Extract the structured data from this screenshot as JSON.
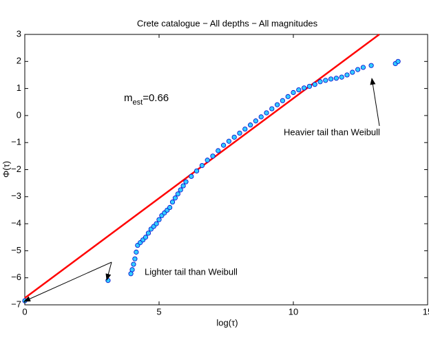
{
  "chart_data": {
    "type": "scatter",
    "title": "Crete catalogue − All depths − All magnitudes",
    "xlabel": "log(τ)",
    "ylabel": "Φ(τ)",
    "xlim": [
      0,
      15
    ],
    "ylim": [
      -7,
      3
    ],
    "xticks": [
      0,
      5,
      10,
      15
    ],
    "yticks": [
      {
        "value": -7,
        "label": "−7"
      },
      {
        "value": -6,
        "label": "−6"
      },
      {
        "value": -5,
        "label": "−5"
      },
      {
        "value": -4,
        "label": "−4"
      },
      {
        "value": -3,
        "label": "−3"
      },
      {
        "value": -2,
        "label": "−2"
      },
      {
        "value": -1,
        "label": "−1"
      },
      0,
      1,
      2,
      3
    ],
    "grid": false,
    "series": [
      {
        "mode": "markers",
        "color": "#33ccff",
        "edgecolor": "#0000cc",
        "x": [
          0,
          3.1,
          3.95,
          4.0,
          4.05,
          4.1,
          4.15,
          4.2,
          4.3,
          4.4,
          4.5,
          4.6,
          4.7,
          4.8,
          4.9,
          5.0,
          5.1,
          5.2,
          5.3,
          5.4,
          5.5,
          5.6,
          5.7,
          5.8,
          5.9,
          6.0,
          6.2,
          6.4,
          6.6,
          6.8,
          7.0,
          7.2,
          7.4,
          7.6,
          7.8,
          8.0,
          8.2,
          8.4,
          8.6,
          8.8,
          9.0,
          9.2,
          9.4,
          9.6,
          9.8,
          10.0,
          10.2,
          10.4,
          10.6,
          10.8,
          11.0,
          11.2,
          11.4,
          11.6,
          11.8,
          12.0,
          12.2,
          12.4,
          12.6,
          12.9,
          13.8,
          13.9
        ],
        "y": [
          -6.85,
          -6.1,
          -5.85,
          -5.7,
          -5.5,
          -5.3,
          -5.05,
          -4.8,
          -4.7,
          -4.6,
          -4.5,
          -4.35,
          -4.2,
          -4.1,
          -4.0,
          -3.85,
          -3.7,
          -3.6,
          -3.5,
          -3.4,
          -3.2,
          -3.05,
          -2.9,
          -2.75,
          -2.6,
          -2.45,
          -2.25,
          -2.05,
          -1.85,
          -1.65,
          -1.5,
          -1.3,
          -1.1,
          -0.95,
          -0.8,
          -0.65,
          -0.5,
          -0.35,
          -0.2,
          -0.05,
          0.1,
          0.25,
          0.4,
          0.55,
          0.7,
          0.85,
          0.95,
          1.02,
          1.08,
          1.15,
          1.25,
          1.3,
          1.35,
          1.38,
          1.42,
          1.5,
          1.6,
          1.7,
          1.78,
          1.85,
          1.92,
          2.0
        ]
      },
      {
        "mode": "line",
        "color": "#ff0000",
        "x": [
          0,
          13.2
        ],
        "y": [
          -6.75,
          3
        ]
      }
    ],
    "annotations": {
      "m_est": {
        "base": "m",
        "sub": "est",
        "rest": "=0.66"
      },
      "heavier": "Heavier tail than Weibull",
      "lighter": "Lighter tail than Weibull"
    }
  }
}
